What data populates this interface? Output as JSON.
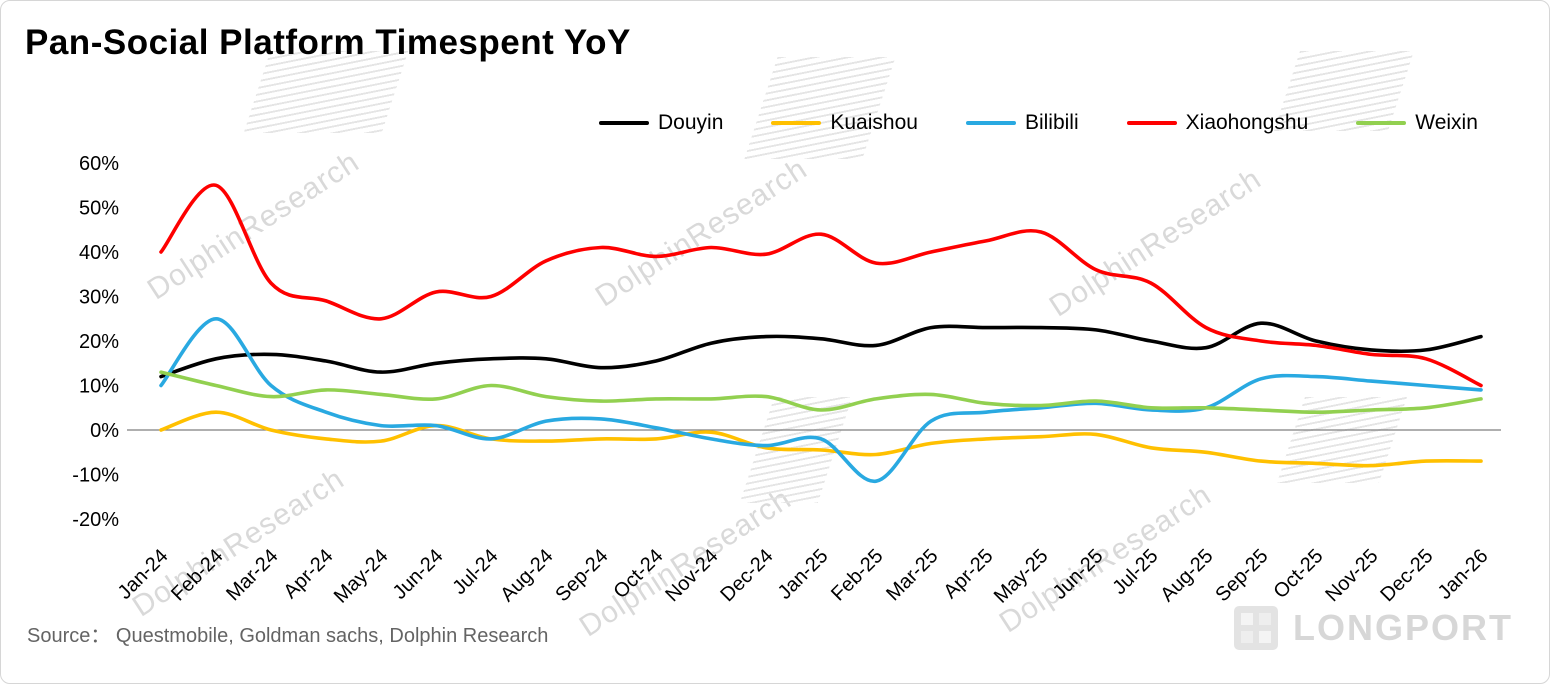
{
  "title": "Pan-Social Platform Timespent YoY",
  "source": "Source：  Questmobile, Goldman sachs, Dolphin Research",
  "watermark_text": "DolphinResearch",
  "logo_text": "LONGPORT",
  "chart_data": {
    "type": "line",
    "title": "Pan-Social Platform Timespent YoY",
    "xlabel": "",
    "ylabel": "",
    "ylim": [
      -20,
      60
    ],
    "yticks": [
      60,
      50,
      40,
      30,
      20,
      10,
      0,
      -10,
      -20
    ],
    "ytick_format": "percent",
    "grid": false,
    "zero_line": true,
    "legend_position": "top",
    "x": [
      "Jan-24",
      "Feb-24",
      "Mar-24",
      "Apr-24",
      "May-24",
      "Jun-24",
      "Jul-24",
      "Aug-24",
      "Sep-24",
      "Oct-24",
      "Nov-24",
      "Dec-24",
      "Jan-25",
      "Feb-25",
      "Mar-25",
      "Apr-25",
      "May-25",
      "Jun-25",
      "Jul-25",
      "Aug-25",
      "Sep-25",
      "Oct-25",
      "Nov-25",
      "Dec-25",
      "Jan-26"
    ],
    "series": [
      {
        "name": "Douyin",
        "color": "#000000",
        "values": [
          12,
          16,
          17,
          15.5,
          13,
          15,
          16,
          16,
          14,
          15.5,
          19.5,
          21,
          20.5,
          19,
          23,
          23,
          23,
          22.5,
          20,
          18.5,
          24,
          20,
          18,
          18,
          21
        ]
      },
      {
        "name": "Kuaishou",
        "color": "#FFC000",
        "values": [
          0,
          4,
          0,
          -2,
          -2.5,
          1,
          -2,
          -2.5,
          -2,
          -2,
          -0.5,
          -4,
          -4.5,
          -5.5,
          -3,
          -2,
          -1.5,
          -1,
          -4,
          -5,
          -7,
          -7.5,
          -8,
          -7,
          -7
        ]
      },
      {
        "name": "Bilibili",
        "color": "#29A9E1",
        "values": [
          10,
          25,
          10,
          4,
          1,
          1,
          -2,
          2,
          2.5,
          0.5,
          -2,
          -3.5,
          -2,
          -11.5,
          2,
          4,
          5,
          6,
          4.5,
          5,
          11.5,
          12,
          11,
          10,
          9
        ]
      },
      {
        "name": "Xiaohongshu",
        "color": "#FE0000",
        "values": [
          40,
          55,
          33,
          29,
          25,
          31,
          30,
          38,
          41,
          39,
          41,
          39.5,
          44,
          37.5,
          40,
          42.5,
          44.5,
          36,
          33,
          23,
          20,
          19,
          17,
          16,
          10
        ]
      },
      {
        "name": "Weixin",
        "color": "#92D050",
        "values": [
          13,
          10,
          7.5,
          9,
          8,
          7,
          10,
          7.5,
          6.5,
          7,
          7,
          7.5,
          4.5,
          7,
          8,
          6,
          5.5,
          6.5,
          5,
          5,
          4.5,
          4,
          4.5,
          5,
          7
        ]
      }
    ]
  }
}
